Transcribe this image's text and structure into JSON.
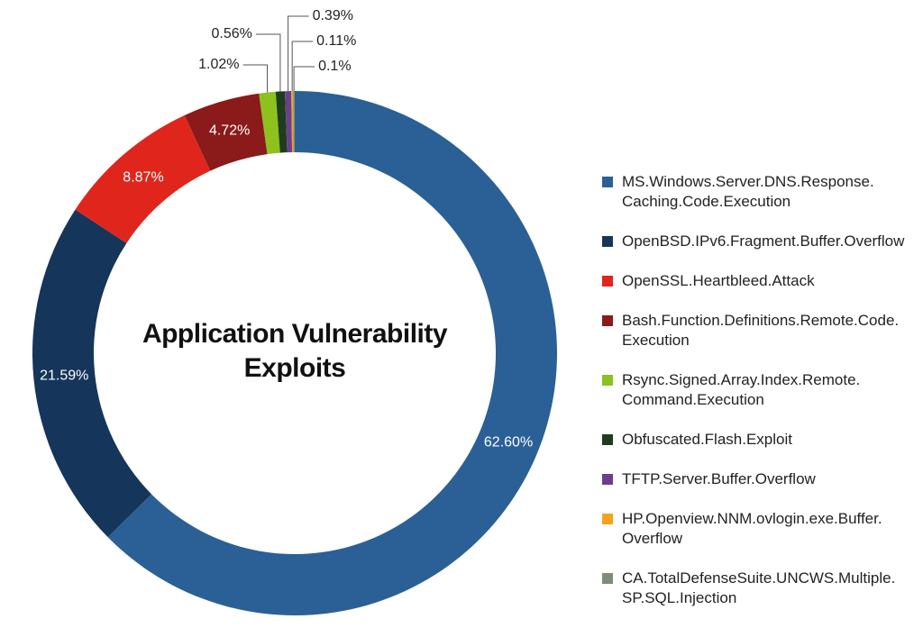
{
  "chart_data": {
    "type": "donut",
    "title": "Application Vulnerability Exploits",
    "categories": [
      "MS.Windows.Server.DNS.Response.Caching.Code.Execution",
      "OpenBSD.IPv6.Fragment.Buffer.Overflow",
      "OpenSSL.Heartbleed.Attack",
      "Bash.Function.Definitions.Remote.Code.Execution",
      "Rsync.Signed.Array.Index.Remote.Command.Execution",
      "Obfuscated.Flash.Exploit",
      "TFTP.Server.Buffer.Overflow",
      "HP.Openview.NNM.ovlogin.exe.Buffer.Overflow",
      "CA.TotalDefenseSuite.UNCWS.Multiple.SP.SQL.Injection"
    ],
    "values": [
      62.6,
      21.59,
      8.87,
      4.72,
      1.02,
      0.56,
      0.39,
      0.11,
      0.1
    ],
    "value_labels": [
      "62.60%",
      "21.59%",
      "8.87%",
      "4.72%",
      "1.02%",
      "0.56%",
      "0.39%",
      "0.11%",
      "0.1%"
    ],
    "colors": [
      "#2a6096",
      "#15355a",
      "#e0261c",
      "#8b1a1a",
      "#8cc11e",
      "#1e3d1e",
      "#6b3f8a",
      "#f5a21c",
      "#7f8c7a"
    ]
  }
}
